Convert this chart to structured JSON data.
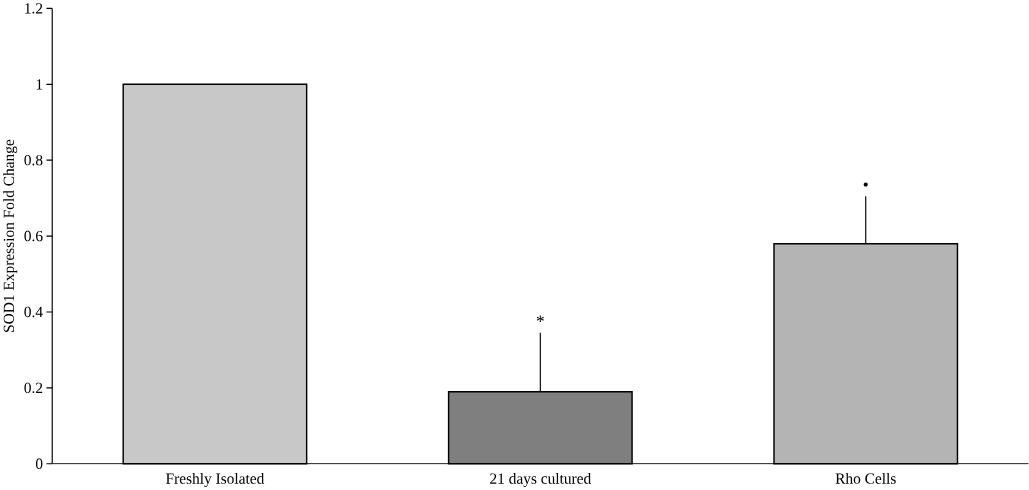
{
  "chart_data": {
    "type": "bar",
    "ylabel": "SOD1 Expression Fold Change",
    "categories": [
      "Freshly Isolated",
      "21 days cultured",
      "Rho Cells"
    ],
    "values": [
      1.0,
      0.19,
      0.58
    ],
    "colors": [
      "#c8c8c8",
      "#7f7f7f",
      "#b4b4b4"
    ],
    "errors": [
      null,
      [
        0.19,
        0.345
      ],
      [
        0.58,
        0.705
      ]
    ],
    "ylim": [
      0,
      1.2
    ],
    "yticks": [
      0,
      0.2,
      0.4,
      0.6,
      0.8,
      1,
      1.2
    ],
    "annotations": [
      "*",
      "•"
    ],
    "grid": false
  }
}
